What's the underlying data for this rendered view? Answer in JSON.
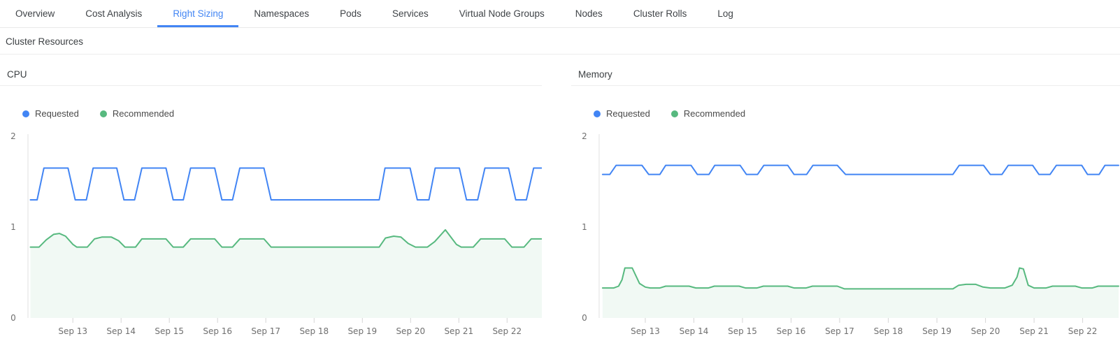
{
  "tabs": {
    "active_index": 2,
    "items": [
      {
        "label": "Overview"
      },
      {
        "label": "Cost Analysis"
      },
      {
        "label": "Right Sizing"
      },
      {
        "label": "Namespaces"
      },
      {
        "label": "Pods"
      },
      {
        "label": "Services"
      },
      {
        "label": "Virtual Node Groups"
      },
      {
        "label": "Nodes"
      },
      {
        "label": "Cluster Rolls"
      },
      {
        "label": "Log"
      }
    ]
  },
  "section": {
    "title": "Cluster Resources"
  },
  "colors": {
    "requested_blue": "#4285f4",
    "recommended_green": "#57b97f",
    "recommended_fill": "#f1f9f4",
    "active_tab": "#4285f4",
    "axis_gray": "#6f6f6f"
  },
  "chart_data": [
    {
      "type": "line",
      "title": "CPU",
      "legend_position": "top-left",
      "grid": false,
      "x_range": [
        12.07,
        22.72
      ],
      "y_range": [
        0,
        2
      ],
      "y_ticks": [
        0,
        1,
        2
      ],
      "x_ticks": [
        {
          "day": 13,
          "label": "Sep 13"
        },
        {
          "day": 14,
          "label": "Sep 14"
        },
        {
          "day": 15,
          "label": "Sep 15"
        },
        {
          "day": 16,
          "label": "Sep 16"
        },
        {
          "day": 17,
          "label": "Sep 17"
        },
        {
          "day": 18,
          "label": "Sep 18"
        },
        {
          "day": 19,
          "label": "Sep 19"
        },
        {
          "day": 20,
          "label": "Sep 20"
        },
        {
          "day": 21,
          "label": "Sep 21"
        },
        {
          "day": 22,
          "label": "Sep 22"
        }
      ],
      "series": [
        {
          "name": "Requested",
          "color": "#4285f4",
          "fill": false,
          "points": [
            [
              12.12,
              1.3
            ],
            [
              12.26,
              1.3
            ],
            [
              12.4,
              1.65
            ],
            [
              12.9,
              1.65
            ],
            [
              13.05,
              1.3
            ],
            [
              13.28,
              1.3
            ],
            [
              13.42,
              1.65
            ],
            [
              13.91,
              1.65
            ],
            [
              14.06,
              1.3
            ],
            [
              14.28,
              1.3
            ],
            [
              14.43,
              1.65
            ],
            [
              14.93,
              1.65
            ],
            [
              15.08,
              1.3
            ],
            [
              15.29,
              1.3
            ],
            [
              15.44,
              1.65
            ],
            [
              15.94,
              1.65
            ],
            [
              16.09,
              1.3
            ],
            [
              16.31,
              1.3
            ],
            [
              16.46,
              1.65
            ],
            [
              16.96,
              1.65
            ],
            [
              17.11,
              1.3
            ],
            [
              19.35,
              1.3
            ],
            [
              19.47,
              1.65
            ],
            [
              19.99,
              1.65
            ],
            [
              20.14,
              1.3
            ],
            [
              20.38,
              1.3
            ],
            [
              20.51,
              1.65
            ],
            [
              21.01,
              1.65
            ],
            [
              21.16,
              1.3
            ],
            [
              21.39,
              1.3
            ],
            [
              21.54,
              1.65
            ],
            [
              22.03,
              1.65
            ],
            [
              22.18,
              1.3
            ],
            [
              22.4,
              1.3
            ],
            [
              22.55,
              1.65
            ],
            [
              22.72,
              1.65
            ]
          ]
        },
        {
          "name": "Recommended",
          "color": "#57b97f",
          "fill": true,
          "fill_color": "#f1f9f4",
          "points": [
            [
              12.12,
              0.78
            ],
            [
              12.3,
              0.78
            ],
            [
              12.45,
              0.86
            ],
            [
              12.6,
              0.92
            ],
            [
              12.72,
              0.93
            ],
            [
              12.85,
              0.9
            ],
            [
              13.0,
              0.81
            ],
            [
              13.08,
              0.78
            ],
            [
              13.3,
              0.78
            ],
            [
              13.45,
              0.87
            ],
            [
              13.6,
              0.89
            ],
            [
              13.8,
              0.89
            ],
            [
              13.95,
              0.85
            ],
            [
              14.08,
              0.78
            ],
            [
              14.3,
              0.78
            ],
            [
              14.43,
              0.87
            ],
            [
              14.93,
              0.87
            ],
            [
              15.08,
              0.78
            ],
            [
              15.29,
              0.78
            ],
            [
              15.44,
              0.87
            ],
            [
              15.94,
              0.87
            ],
            [
              16.09,
              0.78
            ],
            [
              16.31,
              0.78
            ],
            [
              16.46,
              0.87
            ],
            [
              16.96,
              0.87
            ],
            [
              17.11,
              0.78
            ],
            [
              19.35,
              0.78
            ],
            [
              19.48,
              0.88
            ],
            [
              19.65,
              0.9
            ],
            [
              19.8,
              0.89
            ],
            [
              19.95,
              0.82
            ],
            [
              20.1,
              0.78
            ],
            [
              20.35,
              0.78
            ],
            [
              20.5,
              0.84
            ],
            [
              20.72,
              0.97
            ],
            [
              20.85,
              0.88
            ],
            [
              20.95,
              0.81
            ],
            [
              21.05,
              0.78
            ],
            [
              21.3,
              0.78
            ],
            [
              21.45,
              0.87
            ],
            [
              21.95,
              0.87
            ],
            [
              22.1,
              0.78
            ],
            [
              22.35,
              0.78
            ],
            [
              22.5,
              0.87
            ],
            [
              22.72,
              0.87
            ]
          ]
        }
      ]
    },
    {
      "type": "line",
      "title": "Memory",
      "legend_position": "top-left",
      "grid": false,
      "x_range": [
        12.05,
        22.74
      ],
      "y_range": [
        0,
        2
      ],
      "y_ticks": [
        0,
        1,
        2
      ],
      "x_ticks": [
        {
          "day": 13,
          "label": "Sep 13"
        },
        {
          "day": 14,
          "label": "Sep 14"
        },
        {
          "day": 15,
          "label": "Sep 15"
        },
        {
          "day": 16,
          "label": "Sep 16"
        },
        {
          "day": 17,
          "label": "Sep 17"
        },
        {
          "day": 18,
          "label": "Sep 18"
        },
        {
          "day": 19,
          "label": "Sep 19"
        },
        {
          "day": 20,
          "label": "Sep 20"
        },
        {
          "day": 21,
          "label": "Sep 21"
        },
        {
          "day": 22,
          "label": "Sep 22"
        }
      ],
      "series": [
        {
          "name": "Requested",
          "color": "#4285f4",
          "fill": false,
          "points": [
            [
              12.12,
              1.58
            ],
            [
              12.27,
              1.58
            ],
            [
              12.4,
              1.68
            ],
            [
              12.93,
              1.68
            ],
            [
              13.07,
              1.58
            ],
            [
              13.3,
              1.58
            ],
            [
              13.42,
              1.68
            ],
            [
              13.94,
              1.68
            ],
            [
              14.07,
              1.58
            ],
            [
              14.31,
              1.58
            ],
            [
              14.43,
              1.68
            ],
            [
              14.95,
              1.68
            ],
            [
              15.08,
              1.58
            ],
            [
              15.31,
              1.58
            ],
            [
              15.44,
              1.68
            ],
            [
              15.93,
              1.68
            ],
            [
              16.06,
              1.58
            ],
            [
              16.32,
              1.58
            ],
            [
              16.45,
              1.68
            ],
            [
              16.95,
              1.68
            ],
            [
              17.12,
              1.58
            ],
            [
              19.33,
              1.58
            ],
            [
              19.46,
              1.68
            ],
            [
              19.96,
              1.68
            ],
            [
              20.1,
              1.58
            ],
            [
              20.34,
              1.58
            ],
            [
              20.47,
              1.68
            ],
            [
              20.97,
              1.68
            ],
            [
              21.1,
              1.58
            ],
            [
              21.33,
              1.58
            ],
            [
              21.46,
              1.68
            ],
            [
              21.98,
              1.68
            ],
            [
              22.1,
              1.58
            ],
            [
              22.34,
              1.58
            ],
            [
              22.46,
              1.68
            ],
            [
              22.74,
              1.68
            ]
          ]
        },
        {
          "name": "Recommended",
          "color": "#57b97f",
          "fill": true,
          "fill_color": "#f1f9f4",
          "points": [
            [
              12.12,
              0.33
            ],
            [
              12.35,
              0.33
            ],
            [
              12.45,
              0.35
            ],
            [
              12.52,
              0.42
            ],
            [
              12.58,
              0.55
            ],
            [
              12.73,
              0.55
            ],
            [
              12.88,
              0.38
            ],
            [
              13.0,
              0.34
            ],
            [
              13.1,
              0.33
            ],
            [
              13.3,
              0.33
            ],
            [
              13.42,
              0.35
            ],
            [
              13.9,
              0.35
            ],
            [
              14.04,
              0.33
            ],
            [
              14.3,
              0.33
            ],
            [
              14.42,
              0.35
            ],
            [
              14.93,
              0.35
            ],
            [
              15.06,
              0.33
            ],
            [
              15.3,
              0.33
            ],
            [
              15.43,
              0.35
            ],
            [
              15.93,
              0.35
            ],
            [
              16.06,
              0.33
            ],
            [
              16.31,
              0.33
            ],
            [
              16.44,
              0.35
            ],
            [
              16.95,
              0.35
            ],
            [
              17.1,
              0.32
            ],
            [
              19.33,
              0.32
            ],
            [
              19.45,
              0.36
            ],
            [
              19.6,
              0.37
            ],
            [
              19.8,
              0.37
            ],
            [
              19.95,
              0.34
            ],
            [
              20.1,
              0.33
            ],
            [
              20.4,
              0.33
            ],
            [
              20.55,
              0.36
            ],
            [
              20.65,
              0.45
            ],
            [
              20.7,
              0.55
            ],
            [
              20.78,
              0.54
            ],
            [
              20.88,
              0.36
            ],
            [
              21.0,
              0.33
            ],
            [
              21.25,
              0.33
            ],
            [
              21.38,
              0.35
            ],
            [
              21.85,
              0.35
            ],
            [
              21.98,
              0.33
            ],
            [
              22.2,
              0.33
            ],
            [
              22.32,
              0.35
            ],
            [
              22.74,
              0.35
            ]
          ]
        }
      ]
    }
  ]
}
